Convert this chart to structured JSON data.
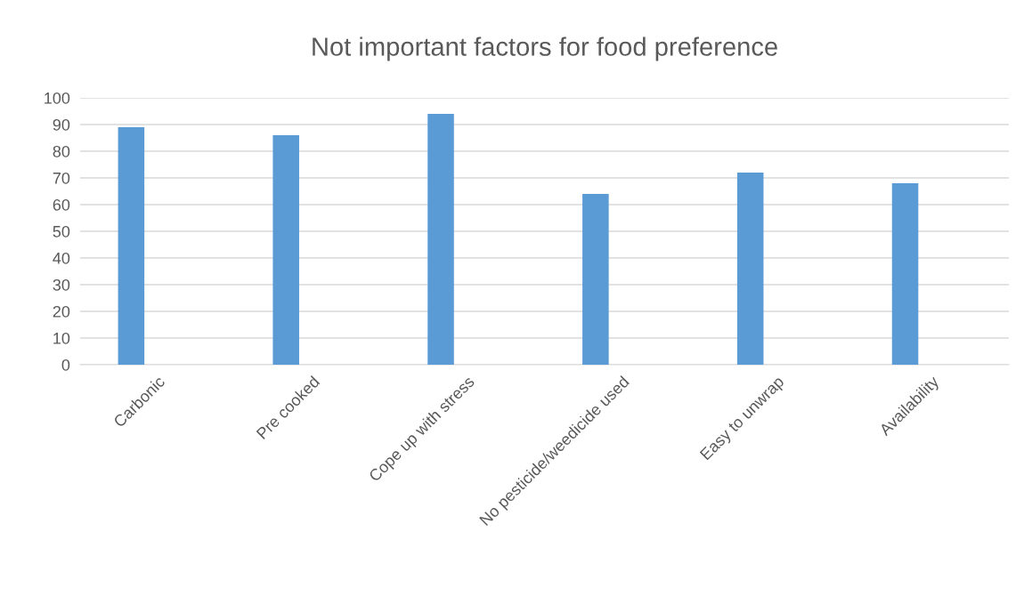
{
  "chart_data": {
    "type": "bar",
    "title": "Not important factors for food preference",
    "categories": [
      "Carbonic",
      "Pre cooked",
      "Cope up with stress",
      "No pesticide/weedicide used",
      "Easy to unwrap",
      "Availability"
    ],
    "values": [
      89,
      86,
      94,
      64,
      72,
      68
    ],
    "color": "#5b9bd5",
    "ylim": [
      0,
      100
    ],
    "yticks": [
      0,
      10,
      20,
      30,
      40,
      50,
      60,
      70,
      80,
      90,
      100
    ],
    "grid": "y"
  }
}
